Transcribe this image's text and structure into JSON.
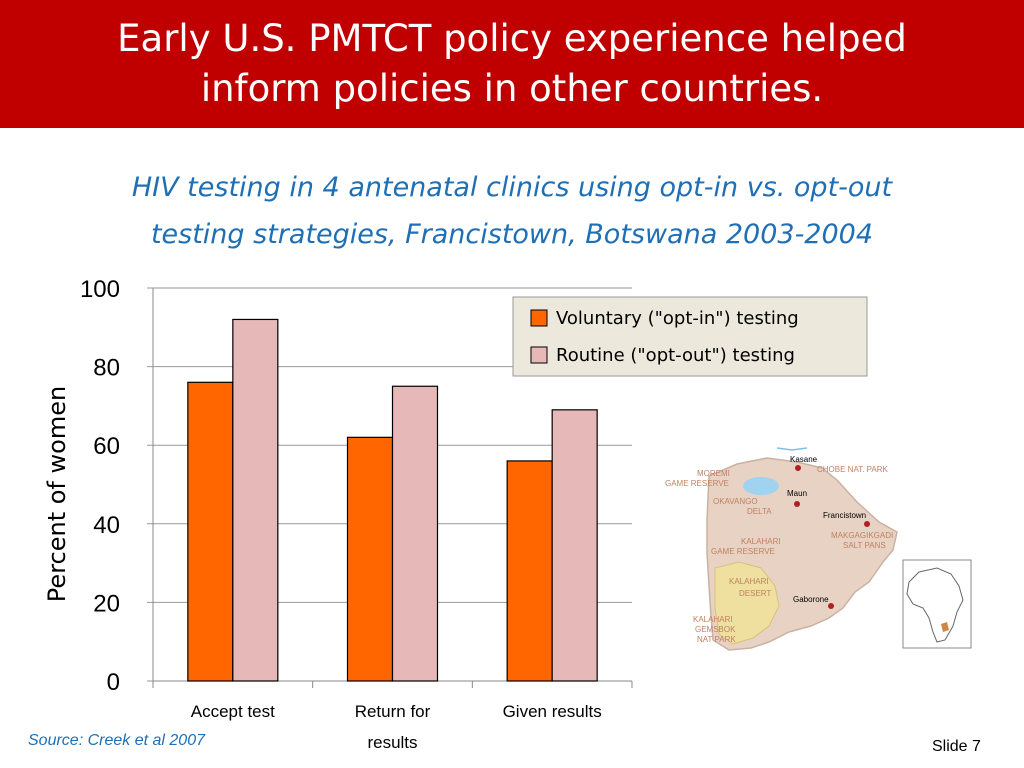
{
  "slide": {
    "title_line1": "Early U.S. PMTCT policy experience helped",
    "title_line2": "inform policies in other countries.",
    "subtitle_line1": "HIV testing in 4 antenatal clinics using opt-in vs. opt-out",
    "subtitle_line2": "testing strategies, Francistown, Botswana 2003-2004",
    "source": "Source: Creek et al 2007",
    "slide_number": "Slide 7"
  },
  "map": {
    "labels": {
      "kasane": "Kasane",
      "chobe_line1": "CHOBE NAT. PARK",
      "moremi_line1": "MOREMI",
      "moremi_line2": "GAME RESERVE",
      "okavango_line1": "OKAVANGO",
      "okavango_line2": "DELTA",
      "maun": "Maun",
      "francistown": "Francistown",
      "makgadikgadi_line1": "MAKGAGIKGADI",
      "makgadikgadi_line2": "SALT PANS",
      "kalahari_gr_line1": "KALAHARI",
      "kalahari_gr_line2": "GAME RESERVE",
      "kalahari_desert_line1": "KALAHARI",
      "kalahari_desert_line2": "DESERT",
      "gaborone": "Gaborone",
      "gemsbok_line1": "KALAHARI",
      "gemsbok_line2": "GEMSBOK",
      "gemsbok_line3": "NAT PARK"
    },
    "colors": {
      "land": "#e8d2c4",
      "desert": "#efe0a0",
      "water": "#9fd3f0",
      "label": "#c08060",
      "city_dot": "#b02020"
    }
  },
  "chart_data": {
    "type": "bar",
    "categories": [
      "Accept test",
      [
        "Return for",
        "results"
      ],
      "Given results"
    ],
    "series": [
      {
        "name": "Voluntary (\"opt-in\") testing",
        "values": [
          76,
          62,
          56
        ],
        "color": "#ff6600"
      },
      {
        "name": "Routine (\"opt-out\") testing",
        "values": [
          92,
          75,
          69
        ],
        "color": "#e6b8b7"
      }
    ],
    "ylabel": "Percent of women",
    "ylim": [
      0,
      100
    ],
    "yticks": [
      0,
      20,
      40,
      60,
      80,
      100
    ],
    "grid": true,
    "legend_position": "top-right"
  }
}
